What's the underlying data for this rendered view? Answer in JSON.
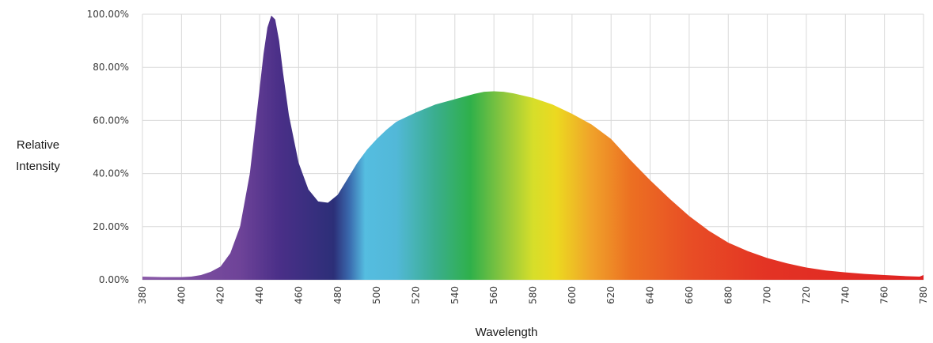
{
  "chart_data": {
    "type": "area",
    "title": "",
    "xlabel": "Wavelength",
    "ylabel_lines": [
      "Relative",
      "Intensity"
    ],
    "xlim": [
      380,
      780
    ],
    "ylim": [
      0,
      100
    ],
    "x_ticks": [
      380,
      400,
      420,
      440,
      460,
      480,
      500,
      520,
      540,
      560,
      580,
      600,
      620,
      640,
      660,
      680,
      700,
      720,
      740,
      760,
      780
    ],
    "x_tick_labels": [
      "380",
      "400",
      "420",
      "440",
      "460",
      "480",
      "500",
      "520",
      "540",
      "560",
      "580",
      "600",
      "620",
      "640",
      "660",
      "680",
      "700",
      "720",
      "740",
      "760",
      "780"
    ],
    "y_ticks": [
      0,
      20,
      40,
      60,
      80,
      100
    ],
    "y_tick_labels": [
      "0.00%",
      "20.00%",
      "40.00%",
      "60.00%",
      "80.00%",
      "100.00%"
    ],
    "grid": true,
    "series": [
      {
        "x": [
          380,
          390,
          400,
          405,
          410,
          415,
          420,
          425,
          430,
          435,
          440,
          442,
          444,
          446,
          448,
          450,
          452,
          455,
          460,
          465,
          470,
          475,
          480,
          485,
          490,
          495,
          500,
          505,
          510,
          520,
          530,
          540,
          550,
          555,
          560,
          565,
          570,
          580,
          590,
          600,
          610,
          620,
          630,
          640,
          650,
          660,
          670,
          680,
          690,
          700,
          710,
          720,
          730,
          740,
          750,
          760,
          770,
          778,
          780
        ],
        "y": [
          1.2,
          1.0,
          1.0,
          1.2,
          1.8,
          3.0,
          5.0,
          10.0,
          20.0,
          40.0,
          72.0,
          85.0,
          95.0,
          99.5,
          98.0,
          90.0,
          78.0,
          62.0,
          44.0,
          34.0,
          29.5,
          29.0,
          32.0,
          38.0,
          44.0,
          49.0,
          53.0,
          56.5,
          59.5,
          63.0,
          66.0,
          68.0,
          70.0,
          70.8,
          71.0,
          70.8,
          70.2,
          68.5,
          66.0,
          62.5,
          58.5,
          53.0,
          45.0,
          37.5,
          30.5,
          24.0,
          18.5,
          14.0,
          10.8,
          8.2,
          6.2,
          4.6,
          3.5,
          2.8,
          2.2,
          1.8,
          1.4,
          1.2,
          1.8
        ]
      }
    ],
    "fill_gradient_stops": [
      {
        "x": 380,
        "color": "#8a5aa8"
      },
      {
        "x": 430,
        "color": "#6e4398"
      },
      {
        "x": 450,
        "color": "#4a2f88"
      },
      {
        "x": 478,
        "color": "#2c2f78"
      },
      {
        "x": 486,
        "color": "#3a6aae"
      },
      {
        "x": 494,
        "color": "#55bde0"
      },
      {
        "x": 510,
        "color": "#52b8d8"
      },
      {
        "x": 530,
        "color": "#3aae8e"
      },
      {
        "x": 548,
        "color": "#2fb04a"
      },
      {
        "x": 565,
        "color": "#8cc63e"
      },
      {
        "x": 580,
        "color": "#d6de2a"
      },
      {
        "x": 592,
        "color": "#ecd920"
      },
      {
        "x": 610,
        "color": "#f0a22a"
      },
      {
        "x": 630,
        "color": "#ec7022"
      },
      {
        "x": 660,
        "color": "#e84e25"
      },
      {
        "x": 700,
        "color": "#e33324"
      },
      {
        "x": 780,
        "color": "#e02222"
      }
    ]
  }
}
